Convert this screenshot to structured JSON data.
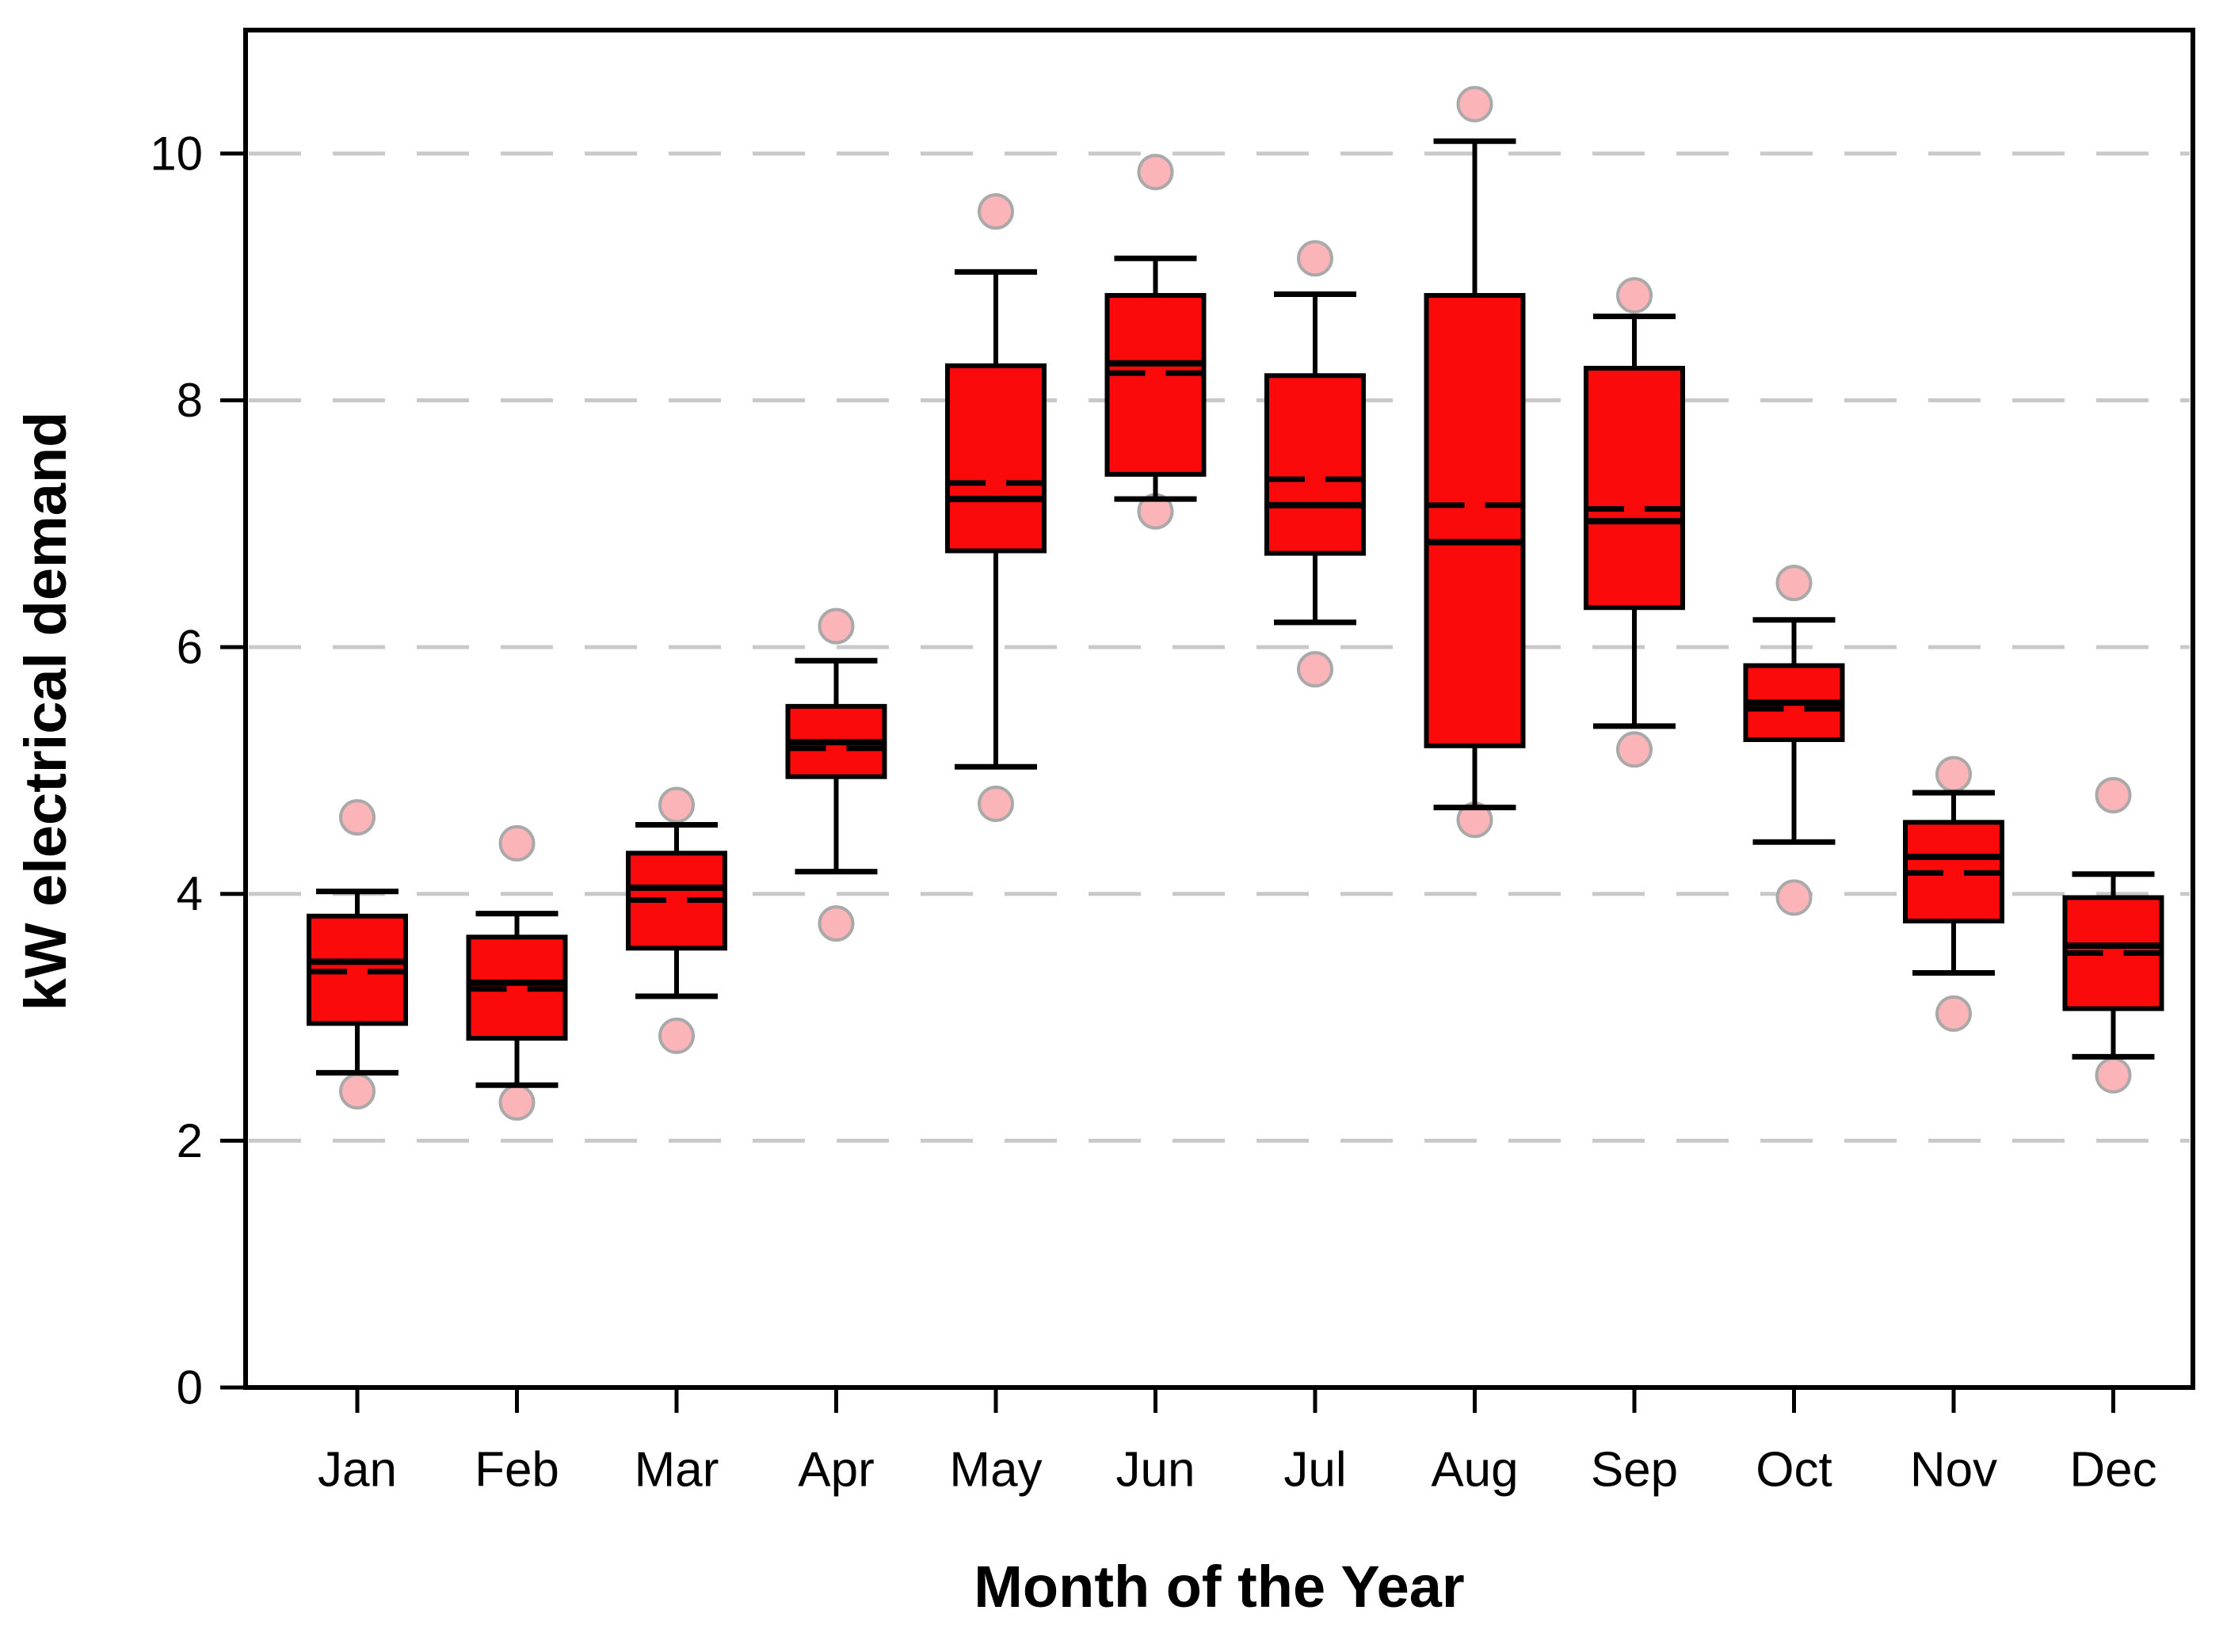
{
  "figure": {
    "y_axis_title": "kW electrical demand",
    "x_axis_title": "Month of the Year"
  },
  "colors": {
    "box_fill": "#FA0A0A",
    "box_border": "#000000",
    "median_line": "#000000",
    "mean_line": "#000000",
    "whisker": "#000000",
    "outlier_fill": "#FBB4B8",
    "outlier_stroke": "#A9A9A9",
    "gridline": "#C9C9C9",
    "axis_frame": "#000000",
    "background": "#FFFFFF"
  },
  "chart_data": {
    "type": "boxplot",
    "title": "",
    "xlabel": "Month of the Year",
    "ylabel": "kW electrical demand",
    "categories": [
      "Jan",
      "Feb",
      "Mar",
      "Apr",
      "May",
      "Jun",
      "Jul",
      "Aug",
      "Sep",
      "Oct",
      "Nov",
      "Dec"
    ],
    "yticks": [
      0,
      2,
      4,
      6,
      8,
      10
    ],
    "ytick_labels": [
      "0",
      "2",
      "4",
      "6",
      "8",
      "10"
    ],
    "ylim": [
      0,
      11
    ],
    "grid": "dashed horizontal gridlines at 2,4,6,8,10",
    "legend_position": "none",
    "style_notes": "solid line = median, dashed line = mean, circles = outliers",
    "boxes": [
      {
        "month": "Jan",
        "whisker_low": 2.55,
        "q1": 2.95,
        "median": 3.45,
        "mean": 3.37,
        "q3": 3.82,
        "whisker_high": 4.02,
        "outlier_high": 4.62,
        "outlier_low": 2.4
      },
      {
        "month": "Feb",
        "whisker_low": 2.45,
        "q1": 2.83,
        "median": 3.28,
        "mean": 3.23,
        "q3": 3.65,
        "whisker_high": 3.84,
        "outlier_high": 4.41,
        "outlier_low": 2.31
      },
      {
        "month": "Mar",
        "whisker_low": 3.17,
        "q1": 3.56,
        "median": 4.05,
        "mean": 3.95,
        "q3": 4.33,
        "whisker_high": 4.56,
        "outlier_high": 4.72,
        "outlier_low": 2.85
      },
      {
        "month": "Apr",
        "whisker_low": 4.18,
        "q1": 4.95,
        "median": 5.23,
        "mean": 5.18,
        "q3": 5.52,
        "whisker_high": 5.89,
        "outlier_high": 6.17,
        "outlier_low": 3.76
      },
      {
        "month": "May",
        "whisker_low": 5.03,
        "q1": 6.78,
        "median": 7.2,
        "mean": 7.33,
        "q3": 8.28,
        "whisker_high": 9.04,
        "outlier_high": 9.53,
        "outlier_low": 4.73
      },
      {
        "month": "Jun",
        "whisker_low": 7.2,
        "q1": 7.4,
        "median": 8.3,
        "mean": 8.22,
        "q3": 8.85,
        "whisker_high": 9.15,
        "outlier_high": 9.85,
        "outlier_low": 7.1
      },
      {
        "month": "Jul",
        "whisker_low": 6.2,
        "q1": 6.76,
        "median": 7.15,
        "mean": 7.36,
        "q3": 8.2,
        "whisker_high": 8.86,
        "outlier_high": 9.15,
        "outlier_low": 5.82
      },
      {
        "month": "Aug",
        "whisker_low": 4.7,
        "q1": 5.2,
        "median": 6.85,
        "mean": 7.15,
        "q3": 8.85,
        "whisker_high": 10.1,
        "outlier_high": 10.4,
        "outlier_low": 4.6
      },
      {
        "month": "Sep",
        "whisker_low": 5.36,
        "q1": 6.32,
        "median": 7.02,
        "mean": 7.12,
        "q3": 8.26,
        "whisker_high": 8.68,
        "outlier_high": 8.85,
        "outlier_low": 5.17
      },
      {
        "month": "Oct",
        "whisker_low": 4.42,
        "q1": 5.25,
        "median": 5.55,
        "mean": 5.5,
        "q3": 5.85,
        "whisker_high": 6.22,
        "outlier_high": 6.52,
        "outlier_low": 3.97
      },
      {
        "month": "Nov",
        "whisker_low": 3.36,
        "q1": 3.78,
        "median": 4.3,
        "mean": 4.17,
        "q3": 4.58,
        "whisker_high": 4.82,
        "outlier_high": 4.97,
        "outlier_low": 3.03
      },
      {
        "month": "Dec",
        "whisker_low": 2.68,
        "q1": 3.07,
        "median": 3.58,
        "mean": 3.52,
        "q3": 3.97,
        "whisker_high": 4.16,
        "outlier_high": 4.8,
        "outlier_low": 2.53
      }
    ]
  }
}
